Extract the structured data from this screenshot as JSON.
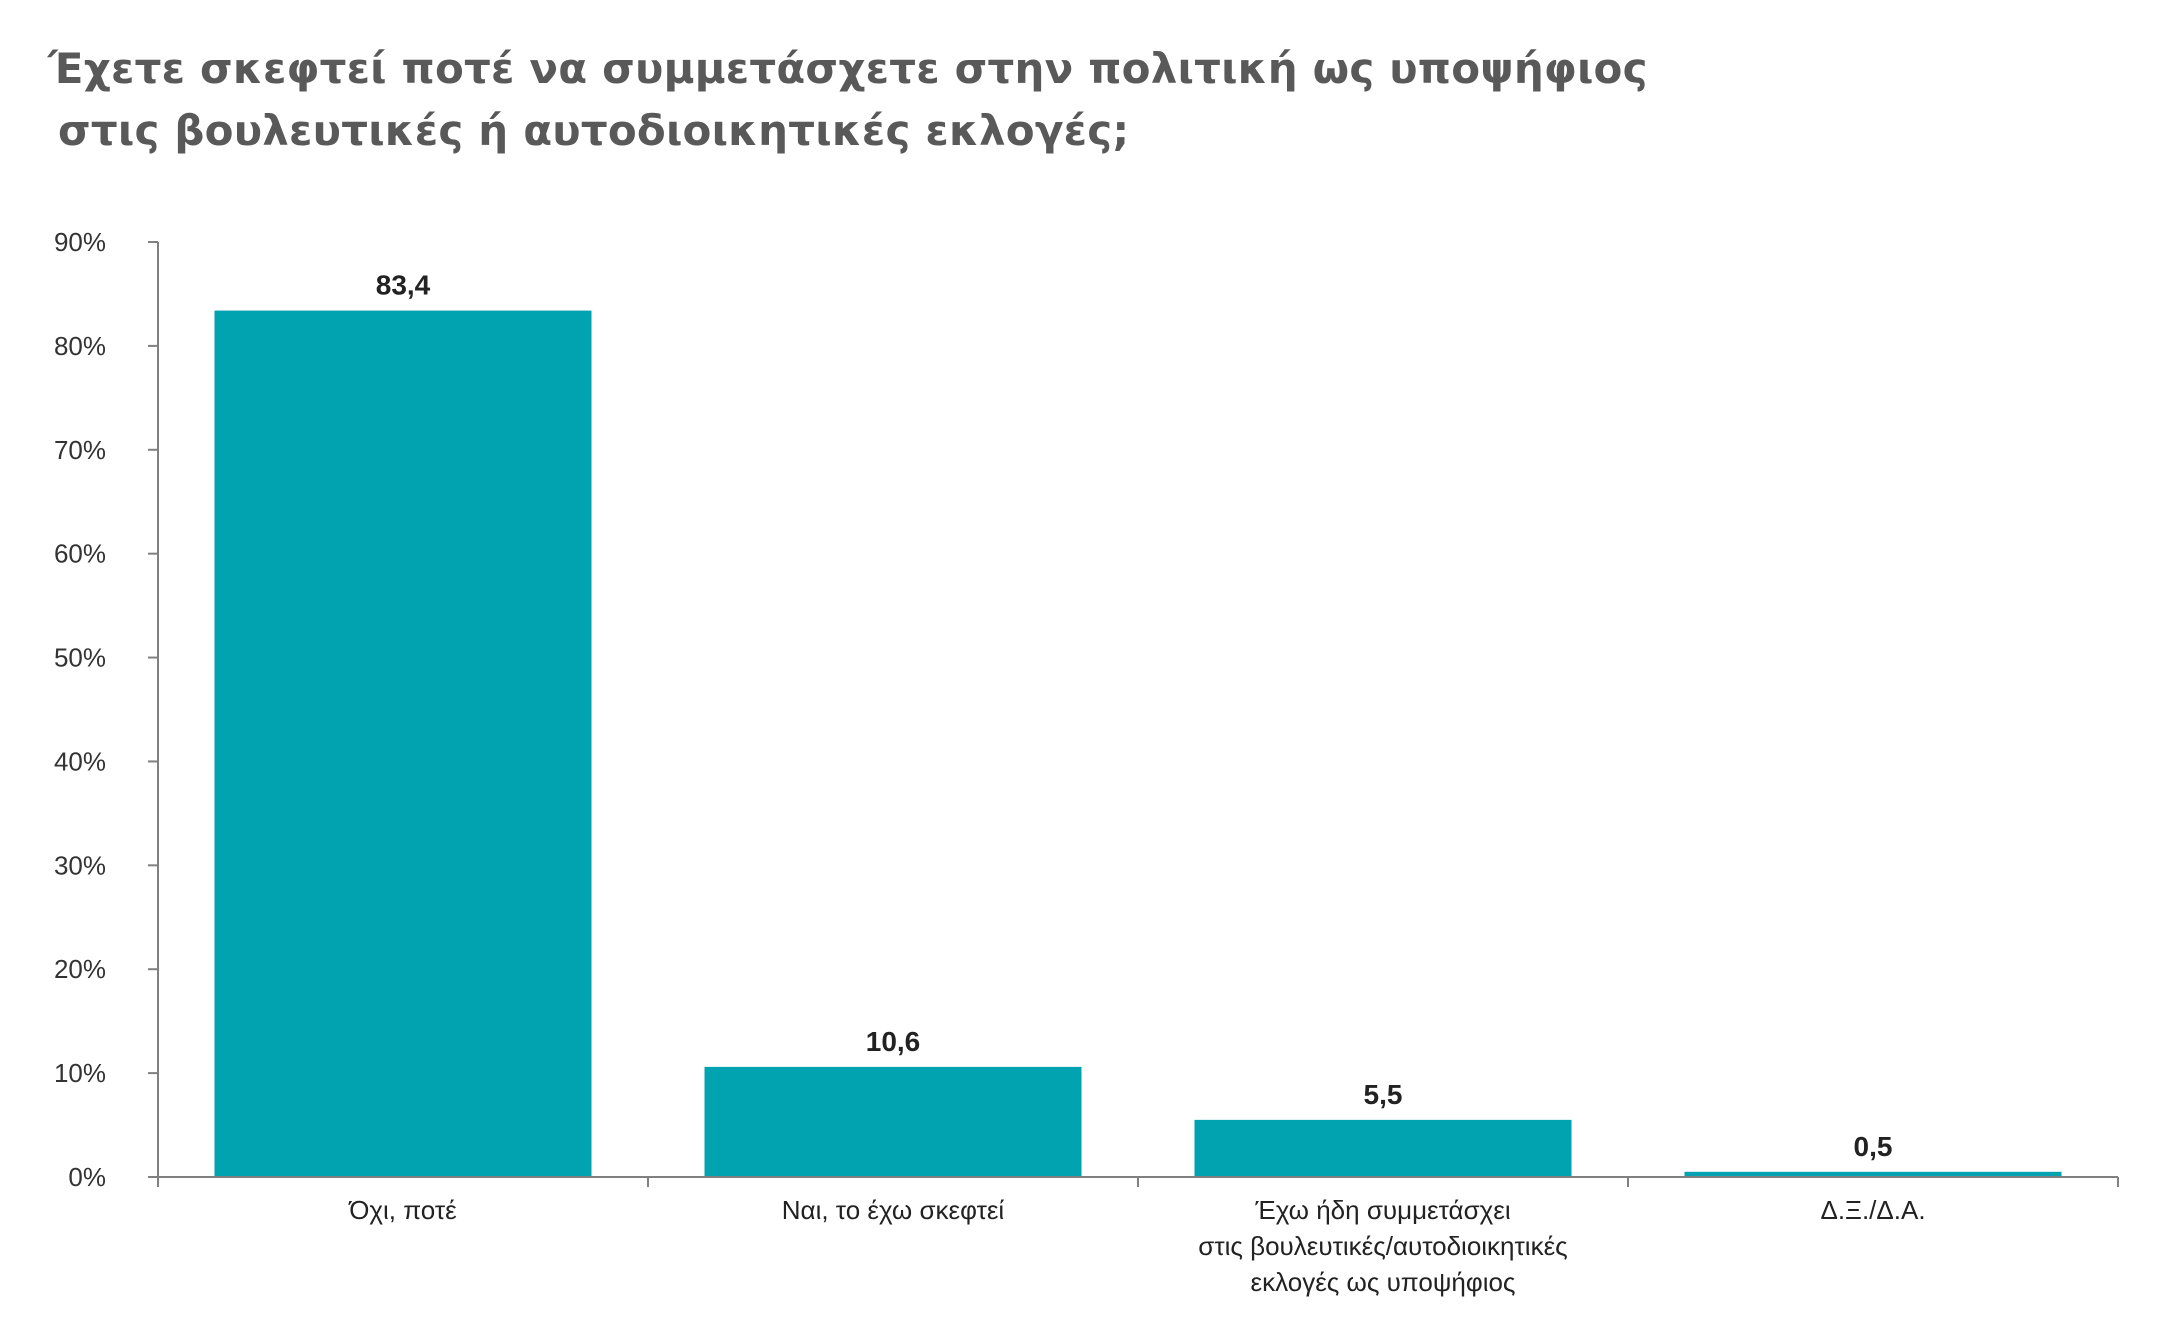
{
  "title_lines": [
    "Έχετε σκεφτεί ποτέ να συμμετάσχετε στην πολιτική ως υποψήφιος",
    "στις βουλευτικές ή αυτοδιοικητικές εκλογές;"
  ],
  "chart_data": {
    "type": "bar",
    "title": "Έχετε σκεφτεί ποτέ να συμμετάσχετε στην πολιτική ως υποψήφιος στις βουλευτικές ή αυτοδιοικητικές εκλογές;",
    "categories": [
      [
        "Όχι, ποτέ"
      ],
      [
        "Ναι,  το έχω σκεφτεί"
      ],
      [
        "Έχω ήδη συμμετάσχει",
        "στις βουλευτικές/αυτοδιοικητικές",
        "εκλογές ως υποψήφιος"
      ],
      [
        "Δ.Ξ./Δ.Α."
      ]
    ],
    "values": [
      83.4,
      10.6,
      5.5,
      0.5
    ],
    "data_labels": [
      "83,4",
      "10,6",
      "5,5",
      "0,5"
    ],
    "ylim": [
      0,
      90
    ],
    "yticks": [
      0,
      10,
      20,
      30,
      40,
      50,
      60,
      70,
      80,
      90
    ],
    "ytick_labels": [
      "0%",
      "10%",
      "20%",
      "30%",
      "40%",
      "50%",
      "60%",
      "70%",
      "80%",
      "90%"
    ],
    "xlabel": "",
    "ylabel": "",
    "grid": false,
    "legend": "none",
    "bar_color": "#00A3AF",
    "axis_color": "#808080"
  }
}
